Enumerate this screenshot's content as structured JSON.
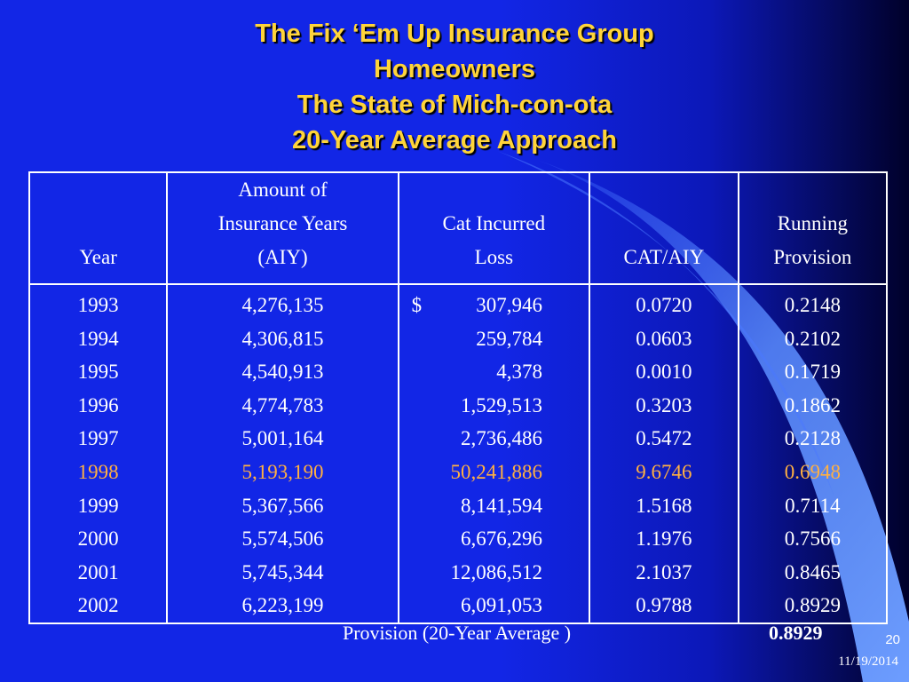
{
  "title": {
    "line1": "The Fix ‘Em Up Insurance Group",
    "line2": "Homeowners",
    "line3": "The State of Mich-con-ota",
    "line4": "20-Year Average Approach"
  },
  "table": {
    "headers": {
      "year": [
        "Year"
      ],
      "aiy": [
        "Amount of",
        "Insurance Years",
        "(AIY)"
      ],
      "loss": [
        "Cat Incurred",
        "Loss"
      ],
      "ratio": [
        "CAT/AIY"
      ],
      "running": [
        "Running",
        "Provision"
      ]
    },
    "currency_symbol": "$",
    "highlight_color": "#ffb042",
    "rows": [
      {
        "year": "1993",
        "aiy": "4,276,135",
        "loss": "307,946",
        "ratio": "0.0720",
        "running": "0.2148",
        "highlight": false
      },
      {
        "year": "1994",
        "aiy": "4,306,815",
        "loss": "259,784",
        "ratio": "0.0603",
        "running": "0.2102",
        "highlight": false
      },
      {
        "year": "1995",
        "aiy": "4,540,913",
        "loss": "4,378",
        "ratio": "0.0010",
        "running": "0.1719",
        "highlight": false
      },
      {
        "year": "1996",
        "aiy": "4,774,783",
        "loss": "1,529,513",
        "ratio": "0.3203",
        "running": "0.1862",
        "highlight": false
      },
      {
        "year": "1997",
        "aiy": "5,001,164",
        "loss": "2,736,486",
        "ratio": "0.5472",
        "running": "0.2128",
        "highlight": false
      },
      {
        "year": "1998",
        "aiy": "5,193,190",
        "loss": "50,241,886",
        "ratio": "9.6746",
        "running": "0.6948",
        "highlight": true
      },
      {
        "year": "1999",
        "aiy": "5,367,566",
        "loss": "8,141,594",
        "ratio": "1.5168",
        "running": "0.7114",
        "highlight": false
      },
      {
        "year": "2000",
        "aiy": "5,574,506",
        "loss": "6,676,296",
        "ratio": "1.1976",
        "running": "0.7566",
        "highlight": false
      },
      {
        "year": "2001",
        "aiy": "5,745,344",
        "loss": "12,086,512",
        "ratio": "2.1037",
        "running": "0.8465",
        "highlight": false
      },
      {
        "year": "2002",
        "aiy": "6,223,199",
        "loss": "6,091,053",
        "ratio": "0.9788",
        "running": "0.8929",
        "highlight": false
      }
    ]
  },
  "footer": {
    "label": "Provision (20-Year Average )",
    "value": "0.8929"
  },
  "slide": {
    "number": "20",
    "date": "11/19/2014"
  }
}
